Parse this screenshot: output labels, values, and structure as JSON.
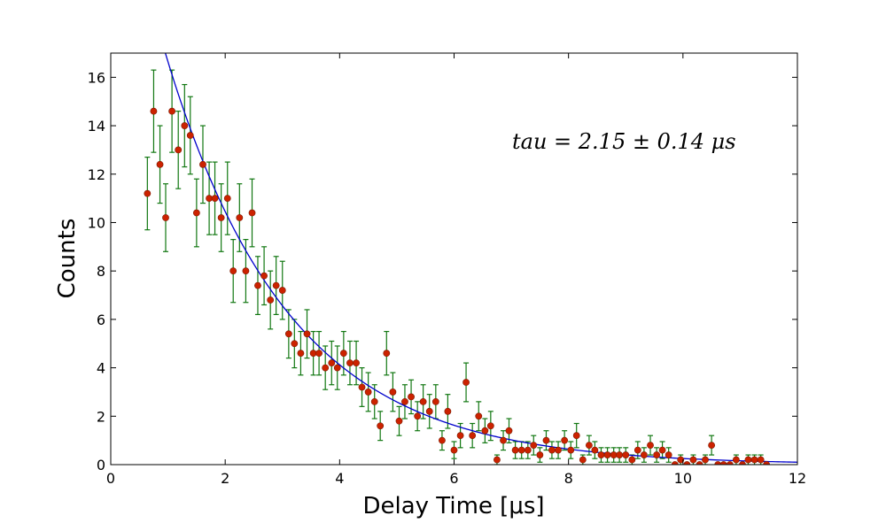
{
  "chart_data": {
    "type": "scatter",
    "title": "",
    "xlabel": "Delay Time [μs]",
    "ylabel": "Counts",
    "xlim": [
      0,
      12
    ],
    "ylim": [
      0,
      17
    ],
    "xticks": [
      0,
      2,
      4,
      6,
      8,
      10,
      12
    ],
    "yticks": [
      0,
      2,
      4,
      6,
      8,
      10,
      12,
      14,
      16
    ],
    "grid": false,
    "annotation": "tau = 2.15 ± 0.14 μs",
    "colors": {
      "points": "#cc2200",
      "errorbars": "#117711",
      "fit": "#0000cc"
    },
    "fit": {
      "type": "exponential",
      "amplitude": 26.5,
      "tau": 2.15
    },
    "points": [
      {
        "x": 0.64,
        "y": 11.2,
        "err": 1.5
      },
      {
        "x": 0.75,
        "y": 14.6,
        "err": 1.7
      },
      {
        "x": 0.86,
        "y": 12.4,
        "err": 1.6
      },
      {
        "x": 0.96,
        "y": 10.2,
        "err": 1.4
      },
      {
        "x": 1.07,
        "y": 14.6,
        "err": 1.7
      },
      {
        "x": 1.18,
        "y": 13.0,
        "err": 1.6
      },
      {
        "x": 1.29,
        "y": 14.0,
        "err": 1.7
      },
      {
        "x": 1.39,
        "y": 13.6,
        "err": 1.6
      },
      {
        "x": 1.5,
        "y": 10.4,
        "err": 1.4
      },
      {
        "x": 1.61,
        "y": 12.4,
        "err": 1.6
      },
      {
        "x": 1.72,
        "y": 11.0,
        "err": 1.5
      },
      {
        "x": 1.82,
        "y": 11.0,
        "err": 1.5
      },
      {
        "x": 1.93,
        "y": 10.2,
        "err": 1.4
      },
      {
        "x": 2.04,
        "y": 11.0,
        "err": 1.5
      },
      {
        "x": 2.14,
        "y": 8.0,
        "err": 1.3
      },
      {
        "x": 2.25,
        "y": 10.2,
        "err": 1.4
      },
      {
        "x": 2.36,
        "y": 8.0,
        "err": 1.3
      },
      {
        "x": 2.47,
        "y": 10.4,
        "err": 1.4
      },
      {
        "x": 2.57,
        "y": 7.4,
        "err": 1.2
      },
      {
        "x": 2.68,
        "y": 7.8,
        "err": 1.2
      },
      {
        "x": 2.79,
        "y": 6.8,
        "err": 1.2
      },
      {
        "x": 2.89,
        "y": 7.4,
        "err": 1.2
      },
      {
        "x": 3.0,
        "y": 7.2,
        "err": 1.2
      },
      {
        "x": 3.11,
        "y": 5.4,
        "err": 1.0
      },
      {
        "x": 3.21,
        "y": 5.0,
        "err": 1.0
      },
      {
        "x": 3.32,
        "y": 4.6,
        "err": 0.9
      },
      {
        "x": 3.43,
        "y": 5.4,
        "err": 1.0
      },
      {
        "x": 3.54,
        "y": 4.6,
        "err": 0.9
      },
      {
        "x": 3.64,
        "y": 4.6,
        "err": 0.9
      },
      {
        "x": 3.75,
        "y": 4.0,
        "err": 0.9
      },
      {
        "x": 3.86,
        "y": 4.2,
        "err": 0.9
      },
      {
        "x": 3.96,
        "y": 4.0,
        "err": 0.9
      },
      {
        "x": 4.07,
        "y": 4.6,
        "err": 0.9
      },
      {
        "x": 4.18,
        "y": 4.2,
        "err": 0.9
      },
      {
        "x": 4.29,
        "y": 4.2,
        "err": 0.9
      },
      {
        "x": 4.39,
        "y": 3.2,
        "err": 0.8
      },
      {
        "x": 4.5,
        "y": 3.0,
        "err": 0.8
      },
      {
        "x": 4.61,
        "y": 2.6,
        "err": 0.7
      },
      {
        "x": 4.71,
        "y": 1.6,
        "err": 0.6
      },
      {
        "x": 4.82,
        "y": 4.6,
        "err": 0.9
      },
      {
        "x": 4.93,
        "y": 3.0,
        "err": 0.8
      },
      {
        "x": 5.04,
        "y": 1.8,
        "err": 0.6
      },
      {
        "x": 5.14,
        "y": 2.6,
        "err": 0.7
      },
      {
        "x": 5.25,
        "y": 2.8,
        "err": 0.7
      },
      {
        "x": 5.36,
        "y": 2.0,
        "err": 0.6
      },
      {
        "x": 5.46,
        "y": 2.6,
        "err": 0.7
      },
      {
        "x": 5.57,
        "y": 2.2,
        "err": 0.7
      },
      {
        "x": 5.68,
        "y": 2.6,
        "err": 0.7
      },
      {
        "x": 5.79,
        "y": 1.0,
        "err": 0.4
      },
      {
        "x": 5.89,
        "y": 2.2,
        "err": 0.7
      },
      {
        "x": 6.0,
        "y": 0.6,
        "err": 0.35
      },
      {
        "x": 6.11,
        "y": 1.2,
        "err": 0.5
      },
      {
        "x": 6.21,
        "y": 3.4,
        "err": 0.8
      },
      {
        "x": 6.32,
        "y": 1.2,
        "err": 0.5
      },
      {
        "x": 6.43,
        "y": 2.0,
        "err": 0.6
      },
      {
        "x": 6.54,
        "y": 1.4,
        "err": 0.5
      },
      {
        "x": 6.64,
        "y": 1.6,
        "err": 0.6
      },
      {
        "x": 6.75,
        "y": 0.2,
        "err": 0.2
      },
      {
        "x": 6.86,
        "y": 1.0,
        "err": 0.4
      },
      {
        "x": 6.96,
        "y": 1.4,
        "err": 0.5
      },
      {
        "x": 7.07,
        "y": 0.6,
        "err": 0.35
      },
      {
        "x": 7.18,
        "y": 0.6,
        "err": 0.35
      },
      {
        "x": 7.29,
        "y": 0.6,
        "err": 0.35
      },
      {
        "x": 7.39,
        "y": 0.8,
        "err": 0.4
      },
      {
        "x": 7.5,
        "y": 0.4,
        "err": 0.3
      },
      {
        "x": 7.61,
        "y": 1.0,
        "err": 0.4
      },
      {
        "x": 7.71,
        "y": 0.6,
        "err": 0.35
      },
      {
        "x": 7.82,
        "y": 0.6,
        "err": 0.35
      },
      {
        "x": 7.93,
        "y": 1.0,
        "err": 0.4
      },
      {
        "x": 8.04,
        "y": 0.6,
        "err": 0.35
      },
      {
        "x": 8.14,
        "y": 1.2,
        "err": 0.5
      },
      {
        "x": 8.25,
        "y": 0.2,
        "err": 0.2
      },
      {
        "x": 8.36,
        "y": 0.8,
        "err": 0.4
      },
      {
        "x": 8.46,
        "y": 0.6,
        "err": 0.35
      },
      {
        "x": 8.57,
        "y": 0.4,
        "err": 0.3
      },
      {
        "x": 8.68,
        "y": 0.4,
        "err": 0.3
      },
      {
        "x": 8.79,
        "y": 0.4,
        "err": 0.3
      },
      {
        "x": 8.89,
        "y": 0.4,
        "err": 0.3
      },
      {
        "x": 9.0,
        "y": 0.4,
        "err": 0.3
      },
      {
        "x": 9.11,
        "y": 0.2,
        "err": 0.2
      },
      {
        "x": 9.21,
        "y": 0.6,
        "err": 0.35
      },
      {
        "x": 9.32,
        "y": 0.4,
        "err": 0.3
      },
      {
        "x": 9.43,
        "y": 0.8,
        "err": 0.4
      },
      {
        "x": 9.54,
        "y": 0.4,
        "err": 0.3
      },
      {
        "x": 9.64,
        "y": 0.6,
        "err": 0.35
      },
      {
        "x": 9.75,
        "y": 0.4,
        "err": 0.3
      },
      {
        "x": 9.86,
        "y": 0.0,
        "err": 0.0
      },
      {
        "x": 9.96,
        "y": 0.2,
        "err": 0.2
      },
      {
        "x": 10.07,
        "y": 0.0,
        "err": 0.0
      },
      {
        "x": 10.18,
        "y": 0.2,
        "err": 0.2
      },
      {
        "x": 10.29,
        "y": 0.0,
        "err": 0.0
      },
      {
        "x": 10.39,
        "y": 0.2,
        "err": 0.2
      },
      {
        "x": 10.5,
        "y": 0.8,
        "err": 0.4
      },
      {
        "x": 10.61,
        "y": 0.0,
        "err": 0.0
      },
      {
        "x": 10.71,
        "y": 0.0,
        "err": 0.0
      },
      {
        "x": 10.82,
        "y": 0.0,
        "err": 0.0
      },
      {
        "x": 10.93,
        "y": 0.2,
        "err": 0.2
      },
      {
        "x": 11.04,
        "y": 0.0,
        "err": 0.0
      },
      {
        "x": 11.14,
        "y": 0.2,
        "err": 0.2
      },
      {
        "x": 11.25,
        "y": 0.2,
        "err": 0.2
      },
      {
        "x": 11.36,
        "y": 0.2,
        "err": 0.2
      },
      {
        "x": 11.46,
        "y": 0.0,
        "err": 0.0
      }
    ]
  }
}
